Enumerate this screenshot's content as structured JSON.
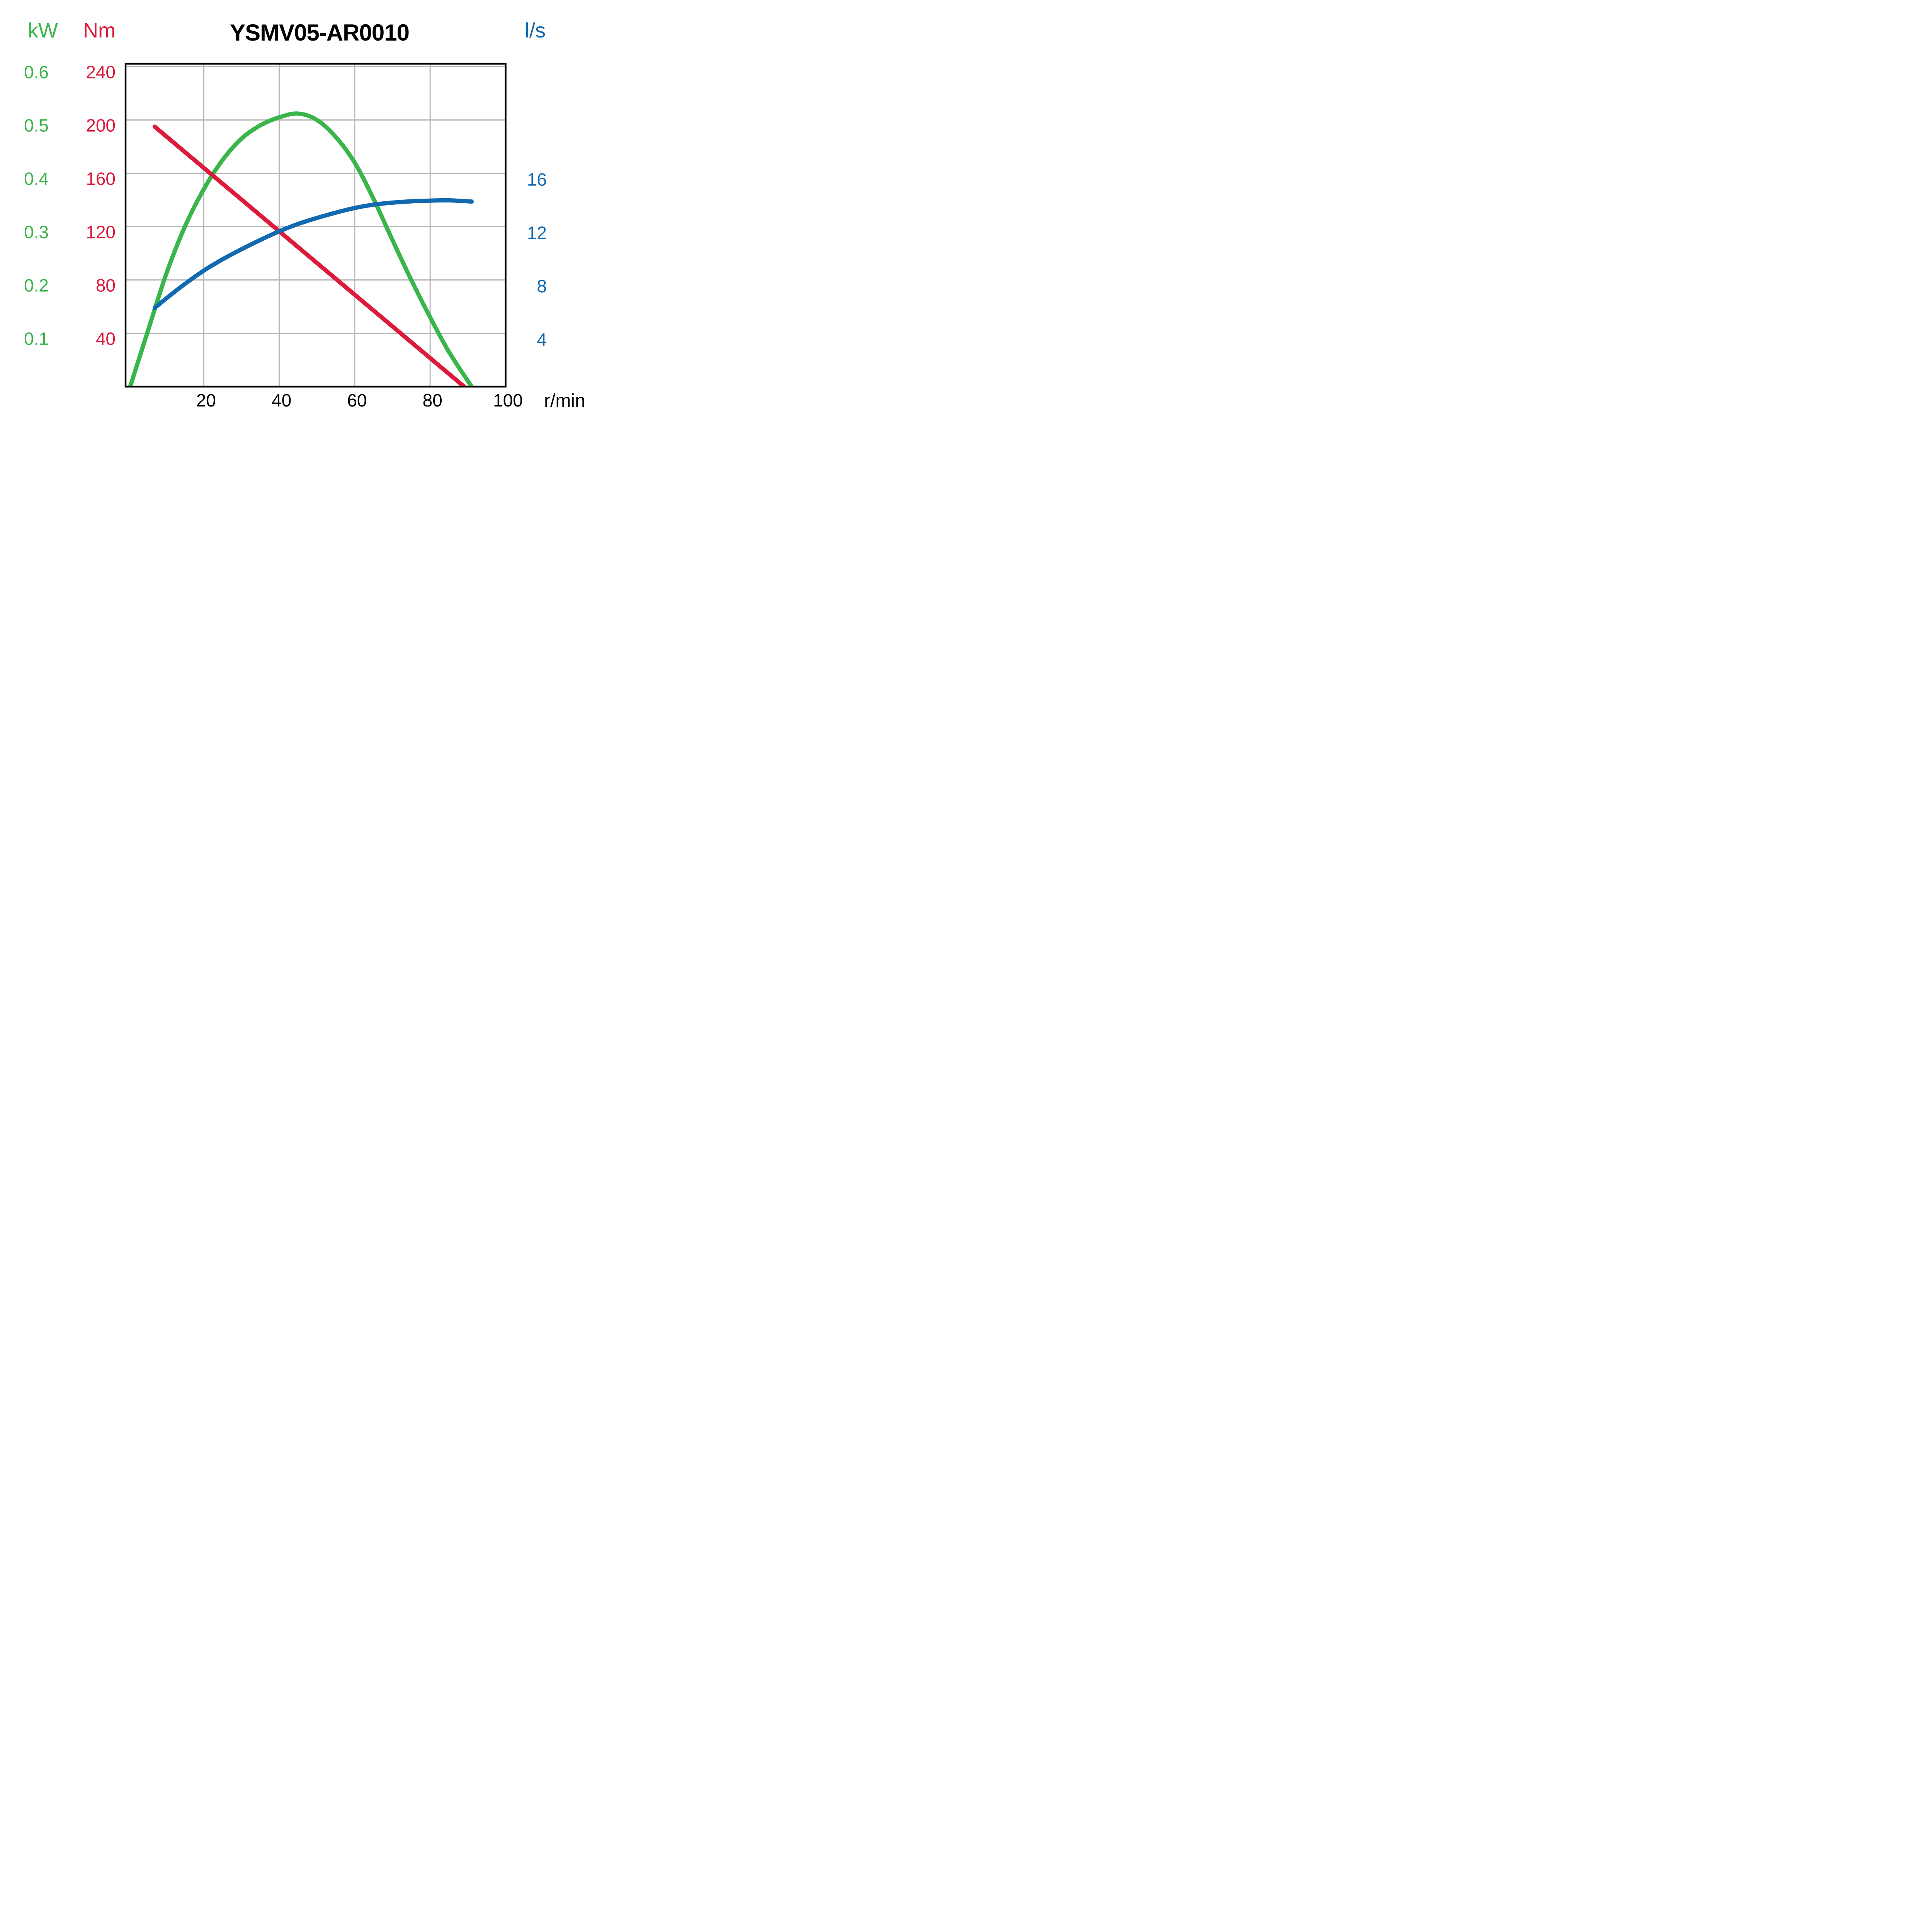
{
  "page": {
    "background": "#ffffff"
  },
  "header": {
    "title": "YSMV05-AR0010"
  },
  "chart_data": {
    "type": "line",
    "title": "YSMV05-AR0010",
    "grid": {
      "on": true,
      "color": "#b9b9b9"
    },
    "frame_color": "#000000",
    "x_axis": {
      "label": "r/min",
      "min": 0,
      "max": 100,
      "ticks": [
        20,
        40,
        60,
        80,
        100
      ],
      "gridline_step": 20,
      "tick_color": "#000000"
    },
    "y_axes": {
      "power": {
        "label": "kW",
        "color": "#3ab54a",
        "min": 0,
        "max": 0.61,
        "ticks": [
          "0.6",
          "0.5",
          "0.4",
          "0.3",
          "0.2",
          "0.1"
        ],
        "units_per_division": 0.1
      },
      "torque": {
        "label": "Nm",
        "color": "#dc1a3c",
        "min": 0,
        "max": 244,
        "ticks": [
          "240",
          "200",
          "160",
          "120",
          "80",
          "40"
        ],
        "units_per_division": 40
      },
      "flow": {
        "label": "l/s",
        "color": "#1169b0",
        "min": 0,
        "max": 24.4,
        "ticks": [
          "16",
          "12",
          "8",
          "4"
        ],
        "units_per_division": 4
      }
    },
    "series": [
      {
        "name": "power-kw",
        "axis": "power",
        "color": "#3ab54a",
        "points": [
          [
            0.5,
            0
          ],
          [
            5,
            0.1
          ],
          [
            10,
            0.21
          ],
          [
            15,
            0.3
          ],
          [
            20,
            0.37
          ],
          [
            25,
            0.425
          ],
          [
            30,
            0.465
          ],
          [
            35,
            0.49
          ],
          [
            40,
            0.505
          ],
          [
            45,
            0.512
          ],
          [
            50,
            0.5
          ],
          [
            55,
            0.468
          ],
          [
            60,
            0.42
          ],
          [
            65,
            0.352
          ],
          [
            70,
            0.275
          ],
          [
            75,
            0.2
          ],
          [
            80,
            0.13
          ],
          [
            85,
            0.065
          ],
          [
            91,
            0
          ]
        ]
      },
      {
        "name": "torque-nm",
        "axis": "torque",
        "color": "#dc1a3c",
        "points": [
          [
            7,
            195
          ],
          [
            89,
            0
          ]
        ]
      },
      {
        "name": "flow-ls",
        "axis": "flow",
        "color": "#1169b0",
        "points": [
          [
            7,
            5.9
          ],
          [
            10,
            6.6
          ],
          [
            15,
            7.7
          ],
          [
            20,
            8.7
          ],
          [
            25,
            9.55
          ],
          [
            30,
            10.3
          ],
          [
            35,
            11.0
          ],
          [
            40,
            11.65
          ],
          [
            45,
            12.2
          ],
          [
            50,
            12.65
          ],
          [
            55,
            13.05
          ],
          [
            60,
            13.4
          ],
          [
            65,
            13.65
          ],
          [
            70,
            13.8
          ],
          [
            75,
            13.9
          ],
          [
            80,
            13.95
          ],
          [
            85,
            13.97
          ],
          [
            91,
            13.88
          ]
        ]
      }
    ]
  }
}
